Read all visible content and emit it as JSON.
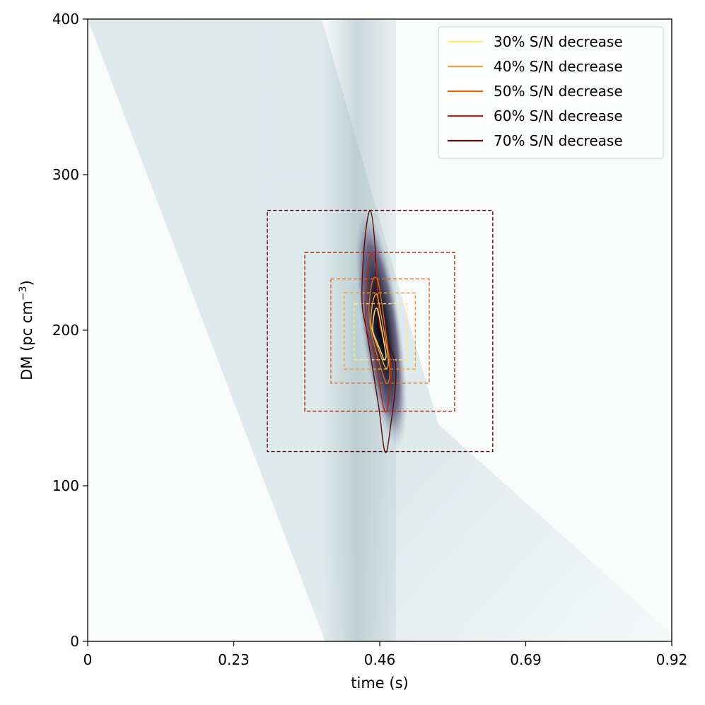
{
  "chart_data": {
    "type": "heatmap",
    "title": "",
    "xlabel": "time (s)",
    "ylabel": "DM (pc cm",
    "ylabel_sup": "−3",
    "ylabel_close": ")",
    "xlim": [
      0,
      0.92
    ],
    "ylim": [
      0,
      400
    ],
    "xticks": [
      0,
      0.23,
      0.46,
      0.69,
      0.92
    ],
    "xtick_labels": [
      "0",
      "0.23",
      "0.46",
      "0.69",
      "0.92"
    ],
    "yticks": [
      0,
      100,
      200,
      300,
      400
    ],
    "ytick_labels": [
      "0",
      "100",
      "200",
      "300",
      "400"
    ],
    "grid": false,
    "legend_position": "top-right",
    "colormap": "bone_r",
    "peak": {
      "time": 0.46,
      "dm": 200
    },
    "series": [
      {
        "name": "30% S/N decrease",
        "color": "#fdeb76",
        "box": {
          "t0": 0.42,
          "t1": 0.503,
          "dm0": 181,
          "dm1": 217
        },
        "contour": [
          [
            0.449,
            200
          ],
          [
            0.451,
            210
          ],
          [
            0.454,
            214
          ],
          [
            0.458,
            211
          ],
          [
            0.468,
            189
          ],
          [
            0.47,
            183
          ],
          [
            0.467,
            181
          ],
          [
            0.462,
            186
          ],
          [
            0.455,
            193
          ]
        ]
      },
      {
        "name": "40% S/N decrease",
        "color": "#f5a432",
        "box": {
          "t0": 0.404,
          "t1": 0.516,
          "dm0": 175,
          "dm1": 224
        },
        "contour": [
          [
            0.446,
            205
          ],
          [
            0.449,
            218
          ],
          [
            0.454,
            223
          ],
          [
            0.458,
            219
          ],
          [
            0.472,
            186
          ],
          [
            0.473,
            177
          ],
          [
            0.469,
            176
          ],
          [
            0.463,
            182
          ],
          [
            0.451,
            196
          ]
        ]
      },
      {
        "name": "50% S/N decrease",
        "color": "#e06816",
        "box": {
          "t0": 0.383,
          "t1": 0.538,
          "dm0": 166,
          "dm1": 233
        },
        "contour": [
          [
            0.443,
            212
          ],
          [
            0.447,
            229
          ],
          [
            0.453,
            234
          ],
          [
            0.46,
            226
          ],
          [
            0.475,
            180
          ],
          [
            0.474,
            167
          ],
          [
            0.468,
            168
          ],
          [
            0.456,
            184
          ],
          [
            0.447,
            198
          ]
        ]
      },
      {
        "name": "60% S/N decrease",
        "color": "#b02816",
        "box": {
          "t0": 0.342,
          "t1": 0.578,
          "dm0": 148,
          "dm1": 250
        },
        "contour": [
          [
            0.438,
            205
          ],
          [
            0.441,
            236
          ],
          [
            0.447,
            249
          ],
          [
            0.455,
            238
          ],
          [
            0.461,
            202
          ],
          [
            0.478,
            178
          ],
          [
            0.472,
            150
          ],
          [
            0.465,
            152
          ],
          [
            0.453,
            182
          ]
        ]
      },
      {
        "name": "70% S/N decrease",
        "color": "#5a0a0a",
        "box": {
          "t0": 0.283,
          "t1": 0.638,
          "dm0": 122,
          "dm1": 277
        },
        "contour": [
          [
            0.432,
            219
          ],
          [
            0.436,
            256
          ],
          [
            0.445,
            277
          ],
          [
            0.453,
            252
          ],
          [
            0.458,
            205
          ],
          [
            0.485,
            178
          ],
          [
            0.476,
            135
          ],
          [
            0.468,
            122
          ],
          [
            0.458,
            152
          ],
          [
            0.44,
            198
          ]
        ]
      }
    ]
  }
}
